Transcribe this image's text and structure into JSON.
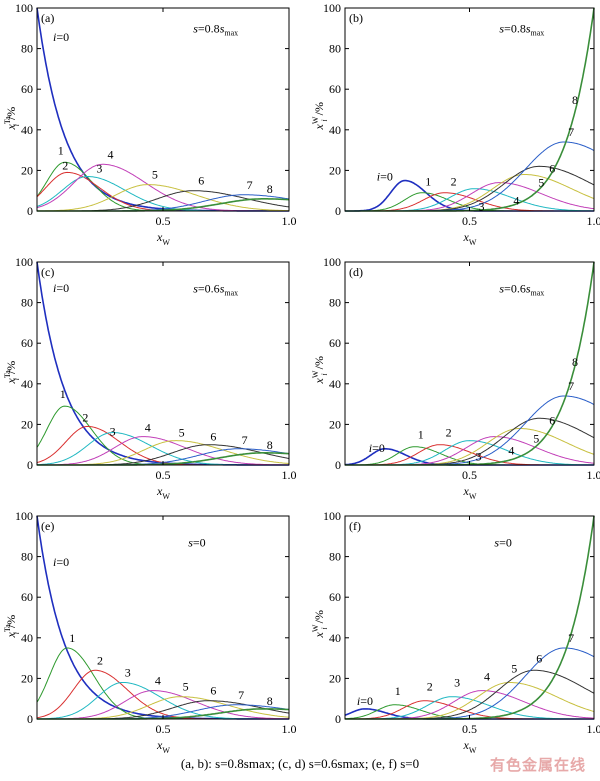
{
  "caption": "(a, b): s=0.8smax; (c, d) s=0.6smax; (e, f) s=0",
  "watermark": "有色金属在线",
  "chart_data": [
    {
      "type": "line",
      "panel": "(a)",
      "condition": "s=0.8smax",
      "element": "Ta",
      "xlabel": "xW",
      "ylabel": "xiTa/%",
      "xlim": [
        0,
        1.0
      ],
      "ylim": [
        0,
        100
      ],
      "xticks": [
        "0.5",
        "1.0"
      ],
      "yticks": [
        "0",
        "20",
        "40",
        "60",
        "80",
        "100"
      ],
      "peak_x": [
        0.0,
        0.11,
        0.12,
        0.2,
        0.26,
        0.44,
        0.62,
        0.82,
        0.9
      ],
      "peak_y": [
        100,
        24,
        19,
        17,
        23,
        13,
        10,
        8,
        6
      ],
      "series": [
        {
          "name": "i=0",
          "label": "i=0",
          "color": "#1f2fbf"
        },
        {
          "name": "1",
          "label": "1",
          "color": "#2e9a2e"
        },
        {
          "name": "2",
          "label": "2",
          "color": "#d93030"
        },
        {
          "name": "3",
          "label": "3",
          "color": "#1fb8c2"
        },
        {
          "name": "4",
          "label": "4",
          "color": "#c23fb8"
        },
        {
          "name": "5",
          "label": "5",
          "color": "#c8c040"
        },
        {
          "name": "6",
          "label": "6",
          "color": "#333333"
        },
        {
          "name": "7",
          "label": "7",
          "color": "#2a5ec8"
        },
        {
          "name": "8",
          "label": "8",
          "color": "#3a8e3a"
        }
      ],
      "annotation": {
        "text": "s=0.8smax",
        "x": 0.62,
        "y": 88
      }
    },
    {
      "type": "line",
      "panel": "(b)",
      "condition": "s=0.8smax",
      "element": "W",
      "xlabel": "xW",
      "ylabel": "xiW/%",
      "xlim": [
        0,
        1.0
      ],
      "ylim": [
        0,
        100
      ],
      "xticks": [
        "0.5",
        "1.0"
      ],
      "yticks": [
        "0",
        "20",
        "40",
        "60",
        "80",
        "100"
      ],
      "peak_x": [
        0.24,
        0.31,
        0.4,
        0.52,
        0.62,
        0.72,
        0.78,
        0.88,
        1.0
      ],
      "peak_y": [
        15,
        9,
        9,
        11,
        14,
        18,
        22,
        34,
        100
      ],
      "series": [
        {
          "name": "i=0",
          "label": "i=0",
          "color": "#1f2fbf"
        },
        {
          "name": "1",
          "label": "1",
          "color": "#2e9a2e"
        },
        {
          "name": "2",
          "label": "2",
          "color": "#d93030"
        },
        {
          "name": "3",
          "label": "3",
          "color": "#1fb8c2"
        },
        {
          "name": "4",
          "label": "4",
          "color": "#c23fb8"
        },
        {
          "name": "5",
          "label": "5",
          "color": "#c8c040"
        },
        {
          "name": "6",
          "label": "6",
          "color": "#333333"
        },
        {
          "name": "7",
          "label": "7",
          "color": "#2a5ec8"
        },
        {
          "name": "8",
          "label": "8",
          "color": "#3a8e3a"
        }
      ],
      "annotation": {
        "text": "s=0.8smax",
        "x": 0.62,
        "y": 88
      }
    },
    {
      "type": "line",
      "panel": "(c)",
      "condition": "s=0.6smax",
      "element": "Ta",
      "xlabel": "xW",
      "ylabel": "xiTa/%",
      "xlim": [
        0,
        1.0
      ],
      "ylim": [
        0,
        100
      ],
      "xticks": [
        "0.5",
        "1.0"
      ],
      "yticks": [
        "0",
        "20",
        "40",
        "60",
        "80",
        "100"
      ],
      "peak_x": [
        0.0,
        0.11,
        0.2,
        0.3,
        0.42,
        0.55,
        0.68,
        0.8,
        0.9
      ],
      "peak_y": [
        100,
        29,
        19,
        16,
        14,
        12,
        10,
        8,
        6
      ],
      "series": [
        {
          "name": "i=0",
          "label": "i=0",
          "color": "#1f2fbf"
        },
        {
          "name": "1",
          "label": "1",
          "color": "#2e9a2e"
        },
        {
          "name": "2",
          "label": "2",
          "color": "#d93030"
        },
        {
          "name": "3",
          "label": "3",
          "color": "#1fb8c2"
        },
        {
          "name": "4",
          "label": "4",
          "color": "#c23fb8"
        },
        {
          "name": "5",
          "label": "5",
          "color": "#c8c040"
        },
        {
          "name": "6",
          "label": "6",
          "color": "#333333"
        },
        {
          "name": "7",
          "label": "7",
          "color": "#2a5ec8"
        },
        {
          "name": "8",
          "label": "8",
          "color": "#3a8e3a"
        }
      ],
      "annotation": {
        "text": "s=0.6smax",
        "x": 0.62,
        "y": 85
      }
    },
    {
      "type": "line",
      "panel": "(d)",
      "condition": "s=0.6smax",
      "element": "W",
      "xlabel": "xW",
      "ylabel": "xiW/%",
      "xlim": [
        0,
        1.0
      ],
      "ylim": [
        0,
        100
      ],
      "xticks": [
        "0.5",
        "1.0"
      ],
      "yticks": [
        "0",
        "20",
        "40",
        "60",
        "80",
        "100"
      ],
      "peak_x": [
        0.16,
        0.28,
        0.38,
        0.5,
        0.6,
        0.7,
        0.78,
        0.88,
        1.0
      ],
      "peak_y": [
        8,
        9,
        10,
        12,
        14,
        18,
        23,
        34,
        100
      ],
      "series": [
        {
          "name": "i=0",
          "label": "i=0",
          "color": "#1f2fbf"
        },
        {
          "name": "1",
          "label": "1",
          "color": "#2e9a2e"
        },
        {
          "name": "2",
          "label": "2",
          "color": "#d93030"
        },
        {
          "name": "3",
          "label": "3",
          "color": "#1fb8c2"
        },
        {
          "name": "4",
          "label": "4",
          "color": "#c23fb8"
        },
        {
          "name": "5",
          "label": "5",
          "color": "#c8c040"
        },
        {
          "name": "6",
          "label": "6",
          "color": "#333333"
        },
        {
          "name": "7",
          "label": "7",
          "color": "#2a5ec8"
        },
        {
          "name": "8",
          "label": "8",
          "color": "#3a8e3a"
        }
      ],
      "annotation": {
        "text": "s=0.6smax",
        "x": 0.62,
        "y": 85
      }
    },
    {
      "type": "line",
      "panel": "(e)",
      "condition": "s=0",
      "element": "Ta",
      "xlabel": "xW",
      "ylabel": "xiTa/%",
      "xlim": [
        0,
        1.0
      ],
      "ylim": [
        0,
        100
      ],
      "xticks": [
        "0.5",
        "1.0"
      ],
      "yticks": [
        "0",
        "20",
        "40",
        "60",
        "80",
        "100"
      ],
      "peak_x": [
        0.0,
        0.12,
        0.23,
        0.34,
        0.46,
        0.57,
        0.68,
        0.79,
        0.9
      ],
      "peak_y": [
        100,
        35,
        24,
        18,
        14,
        11,
        9,
        7,
        5
      ],
      "series": [
        {
          "name": "i=0",
          "label": "i=0",
          "color": "#1f2fbf"
        },
        {
          "name": "1",
          "label": "1",
          "color": "#2e9a2e"
        },
        {
          "name": "2",
          "label": "2",
          "color": "#d93030"
        },
        {
          "name": "3",
          "label": "3",
          "color": "#1fb8c2"
        },
        {
          "name": "4",
          "label": "4",
          "color": "#c23fb8"
        },
        {
          "name": "5",
          "label": "5",
          "color": "#c8c040"
        },
        {
          "name": "6",
          "label": "6",
          "color": "#333333"
        },
        {
          "name": "7",
          "label": "7",
          "color": "#2a5ec8"
        },
        {
          "name": "8",
          "label": "8",
          "color": "#3a8e3a"
        }
      ],
      "annotation": {
        "text": "s=0",
        "x": 0.6,
        "y": 85
      }
    },
    {
      "type": "line",
      "panel": "(f)",
      "condition": "s=0",
      "element": "W",
      "xlabel": "xW",
      "ylabel": "xiW/%",
      "xlim": [
        0,
        1.0
      ],
      "ylim": [
        0,
        100
      ],
      "xticks": [
        "0.5",
        "1.0"
      ],
      "yticks": [
        "0",
        "20",
        "40",
        "60",
        "80",
        "100"
      ],
      "peak_x": [
        0.08,
        0.2,
        0.32,
        0.43,
        0.55,
        0.66,
        0.76,
        0.88,
        1.0
      ],
      "peak_y": [
        5,
        7,
        9,
        11,
        14,
        18,
        24,
        35,
        100
      ],
      "series": [
        {
          "name": "i=0",
          "label": "i=0",
          "color": "#1f2fbf"
        },
        {
          "name": "1",
          "label": "1",
          "color": "#2e9a2e"
        },
        {
          "name": "2",
          "label": "2",
          "color": "#d93030"
        },
        {
          "name": "3",
          "label": "3",
          "color": "#1fb8c2"
        },
        {
          "name": "4",
          "label": "4",
          "color": "#c23fb8"
        },
        {
          "name": "5",
          "label": "5",
          "color": "#c8c040"
        },
        {
          "name": "6",
          "label": "6",
          "color": "#333333"
        },
        {
          "name": "7",
          "label": "7",
          "color": "#2a5ec8"
        },
        {
          "name": "8",
          "label": "8",
          "color": "#3a8e3a"
        }
      ],
      "annotation": {
        "text": "s=0",
        "x": 0.6,
        "y": 85
      }
    }
  ]
}
